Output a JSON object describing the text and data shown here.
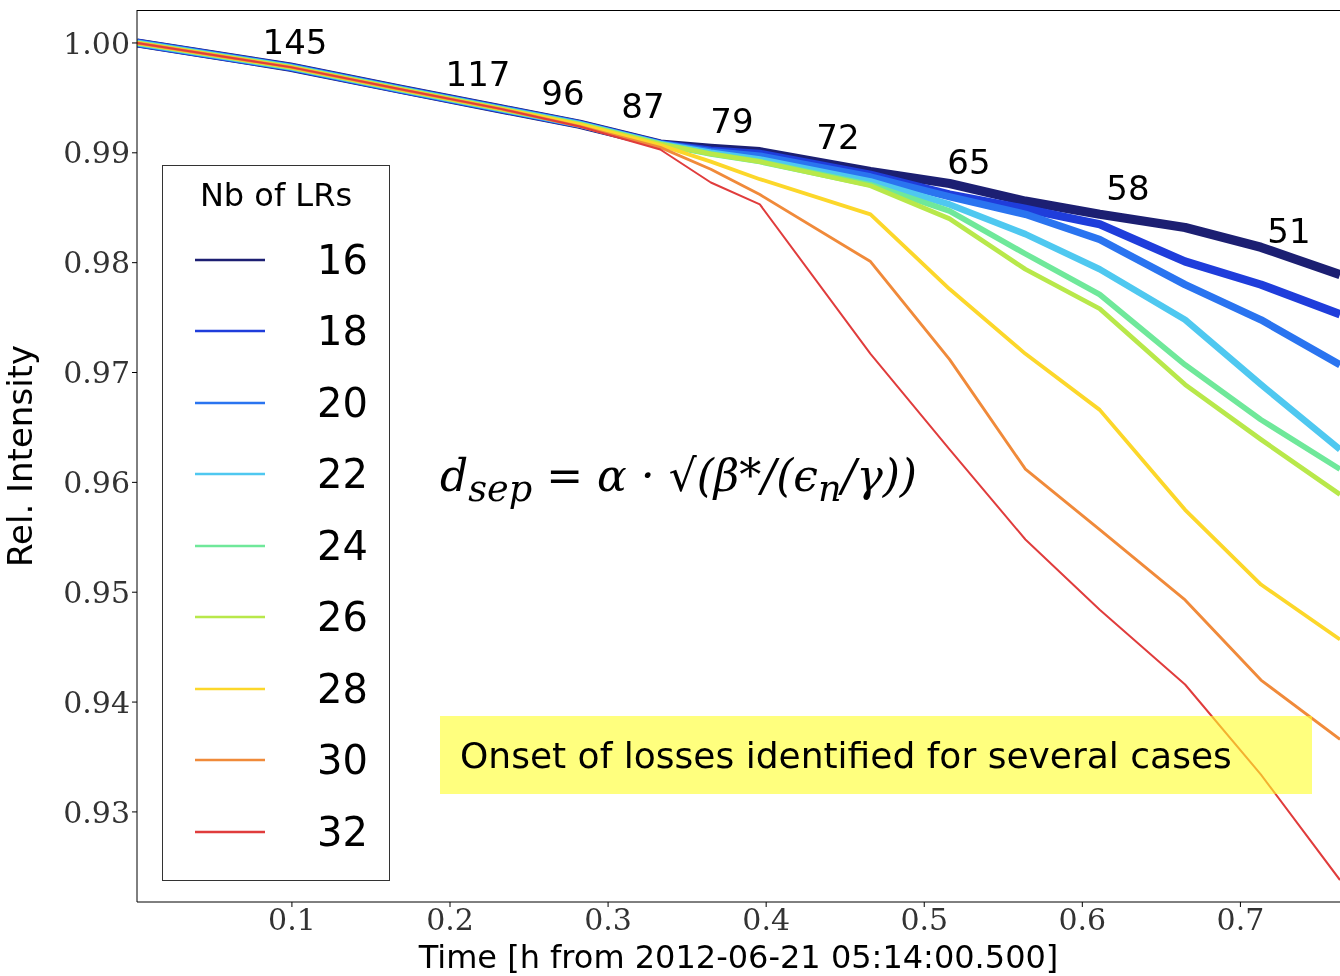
{
  "chart_data": {
    "type": "line",
    "xlabel": "Time [h from 2012-06-21 05:14:00.500]",
    "ylabel": "Rel. Intensity",
    "legend_title": "Nb of LRs",
    "legend": "left",
    "x": [
      0.002,
      0.099,
      0.168,
      0.232,
      0.282,
      0.333,
      0.365,
      0.396,
      0.466,
      0.516,
      0.564,
      0.611,
      0.665,
      0.713,
      0.763
    ],
    "xlim": [
      0.002,
      0.763
    ],
    "xticks": [
      0.1,
      0.2,
      0.3,
      0.4,
      0.5,
      0.6,
      0.7
    ],
    "ylim": [
      0.9218,
      1.003
    ],
    "yticks": [
      {
        "value": 0.93,
        "label": "0.93"
      },
      {
        "value": 0.94,
        "label": "0.94"
      },
      {
        "value": 0.95,
        "label": "0.95"
      },
      {
        "value": 0.96,
        "label": "0.96"
      },
      {
        "value": 0.97,
        "label": "0.97"
      },
      {
        "value": 0.98,
        "label": "0.98"
      },
      {
        "value": 0.99,
        "label": "0.99"
      },
      {
        "value": 1.0,
        "label": "1.00"
      }
    ],
    "series": [
      {
        "name": "16",
        "color": "#1c1f72",
        "values": [
          1.0,
          0.9978,
          0.9958,
          0.994,
          0.9926,
          0.9908,
          0.9904,
          0.9901,
          0.9883,
          0.9872,
          0.9856,
          0.9844,
          0.9832,
          0.9814,
          0.9789
        ]
      },
      {
        "name": "18",
        "color": "#1f3ddb",
        "values": [
          1.0,
          0.9978,
          0.9958,
          0.994,
          0.9926,
          0.9908,
          0.9902,
          0.9899,
          0.988,
          0.9862,
          0.9849,
          0.9835,
          0.9801,
          0.978,
          0.9753
        ]
      },
      {
        "name": "20",
        "color": "#2a74f0",
        "values": [
          1.0,
          0.9978,
          0.9958,
          0.994,
          0.9926,
          0.9908,
          0.9901,
          0.9897,
          0.9878,
          0.986,
          0.9844,
          0.9821,
          0.978,
          0.9748,
          0.9707
        ]
      },
      {
        "name": "22",
        "color": "#4fc8f0",
        "values": [
          1.0,
          0.9978,
          0.9958,
          0.994,
          0.9926,
          0.9908,
          0.99,
          0.9894,
          0.9874,
          0.9853,
          0.9826,
          0.9794,
          0.9748,
          0.9689,
          0.963
        ]
      },
      {
        "name": "24",
        "color": "#6fe89a",
        "values": [
          1.0,
          0.9978,
          0.9958,
          0.994,
          0.9926,
          0.9908,
          0.9899,
          0.9892,
          0.9871,
          0.9847,
          0.9808,
          0.9771,
          0.9707,
          0.9657,
          0.9612
        ]
      },
      {
        "name": "26",
        "color": "#b8e84a",
        "values": [
          1.0,
          0.9978,
          0.9958,
          0.994,
          0.9926,
          0.9908,
          0.9899,
          0.9892,
          0.987,
          0.984,
          0.9794,
          0.9758,
          0.9689,
          0.9639,
          0.9589
        ]
      },
      {
        "name": "28",
        "color": "#fcd72a",
        "values": [
          1.0,
          0.9978,
          0.9958,
          0.994,
          0.9926,
          0.9907,
          0.9892,
          0.9876,
          0.9844,
          0.9776,
          0.9717,
          0.9666,
          0.9575,
          0.9507,
          0.9457
        ]
      },
      {
        "name": "30",
        "color": "#f08a3a",
        "values": [
          1.0,
          0.9978,
          0.9958,
          0.994,
          0.9924,
          0.9905,
          0.9885,
          0.9862,
          0.9801,
          0.9712,
          0.9612,
          0.9557,
          0.9493,
          0.942,
          0.9366
        ]
      },
      {
        "name": "32",
        "color": "#e03c3c",
        "values": [
          1.0,
          0.9978,
          0.9958,
          0.994,
          0.9924,
          0.9903,
          0.9873,
          0.9853,
          0.9717,
          0.963,
          0.9548,
          0.9484,
          0.9416,
          0.9334,
          0.9238
        ]
      }
    ],
    "annotations": [
      "145",
      "117",
      "96",
      "87",
      "79",
      "72",
      "65",
      "58",
      "51",
      "d$_{sep}$ = α · √(β*/(ϵ$_{n}$/γ))",
      "Onset of losses identified for several cases"
    ]
  }
}
